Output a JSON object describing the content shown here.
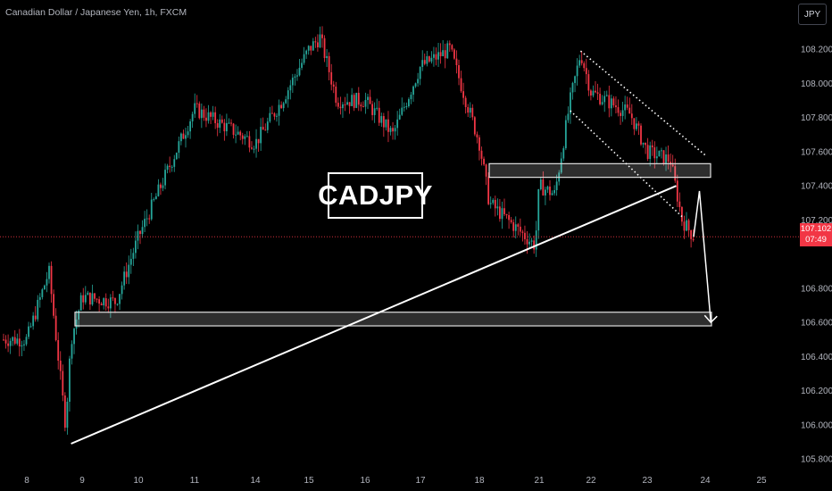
{
  "header": {
    "title": "Canadian Dollar / Japanese Yen, 1h, FXCM"
  },
  "currency_button": "JPY",
  "price_tag": {
    "price": "107.102",
    "countdown": "07:49"
  },
  "annotation": {
    "label": "CADJPY"
  },
  "colors": {
    "background": "#000000",
    "up": "#26a69a",
    "down": "#f23645",
    "axis_text": "#b2b5be",
    "drawing": "#ffffff"
  },
  "chart_data": {
    "type": "candlestick",
    "y_axis": {
      "ticks": [
        "108.200",
        "108.000",
        "107.800",
        "107.600",
        "107.400",
        "107.200",
        "106.800",
        "106.600",
        "106.400",
        "106.200",
        "106.000",
        "105.800"
      ],
      "ylim": [
        105.76,
        108.33
      ]
    },
    "x_axis": {
      "ticks": [
        "8",
        "9",
        "10",
        "11",
        "14",
        "15",
        "16",
        "17",
        "18",
        "21",
        "22",
        "23",
        "24",
        "25"
      ]
    },
    "current_price": 107.102,
    "price_path": [
      {
        "x": "8",
        "y": 106.5
      },
      {
        "x": "8.4",
        "y": 106.9
      },
      {
        "x": "8.7",
        "y": 106.0
      },
      {
        "x": "8.8",
        "y": 106.5
      },
      {
        "x": "9",
        "y": 106.75
      },
      {
        "x": "9.6",
        "y": 106.72
      },
      {
        "x": "10",
        "y": 107.1
      },
      {
        "x": "10.6",
        "y": 107.55
      },
      {
        "x": "11",
        "y": 107.85
      },
      {
        "x": "14",
        "y": 107.65
      },
      {
        "x": "14.5",
        "y": 107.9
      },
      {
        "x": "15",
        "y": 108.2
      },
      {
        "x": "15.2",
        "y": 108.27
      },
      {
        "x": "15.5",
        "y": 107.9
      },
      {
        "x": "16",
        "y": 107.9
      },
      {
        "x": "16.5",
        "y": 107.7
      },
      {
        "x": "17",
        "y": 108.1
      },
      {
        "x": "17.5",
        "y": 108.2
      },
      {
        "x": "18",
        "y": 107.65
      },
      {
        "x": "18.5",
        "y": 107.3
      },
      {
        "x": "20.8",
        "y": 107.05
      },
      {
        "x": "21",
        "y": 107.4
      },
      {
        "x": "21.3",
        "y": 107.35
      },
      {
        "x": "21.6",
        "y": 107.9
      },
      {
        "x": "21.8",
        "y": 108.18
      },
      {
        "x": "22",
        "y": 107.95
      },
      {
        "x": "22.7",
        "y": 107.82
      },
      {
        "x": "23",
        "y": 107.6
      },
      {
        "x": "23.4",
        "y": 107.55
      },
      {
        "x": "23.6",
        "y": 107.2
      },
      {
        "x": "23.8",
        "y": 107.102
      }
    ],
    "drawings": {
      "support_zone": [
        106.58,
        106.66
      ],
      "resistance_zone": [
        107.45,
        107.53
      ],
      "trendline": {
        "from": {
          "x": "8.8",
          "y": 105.89
        },
        "to": {
          "x": "23.5",
          "y": 107.4
        }
      },
      "channel_upper": {
        "from": {
          "x": "21.8",
          "y": 108.19
        },
        "to": {
          "x": "24",
          "y": 107.58
        }
      },
      "channel_lower": {
        "from": {
          "x": "21.6",
          "y": 107.84
        },
        "to": {
          "x": "23.6",
          "y": 107.22
        }
      },
      "projection": [
        {
          "x": "23.8",
          "y": 107.102
        },
        {
          "x": "23.9",
          "y": 107.37
        },
        {
          "x": "24.1",
          "y": 106.6
        }
      ]
    }
  }
}
